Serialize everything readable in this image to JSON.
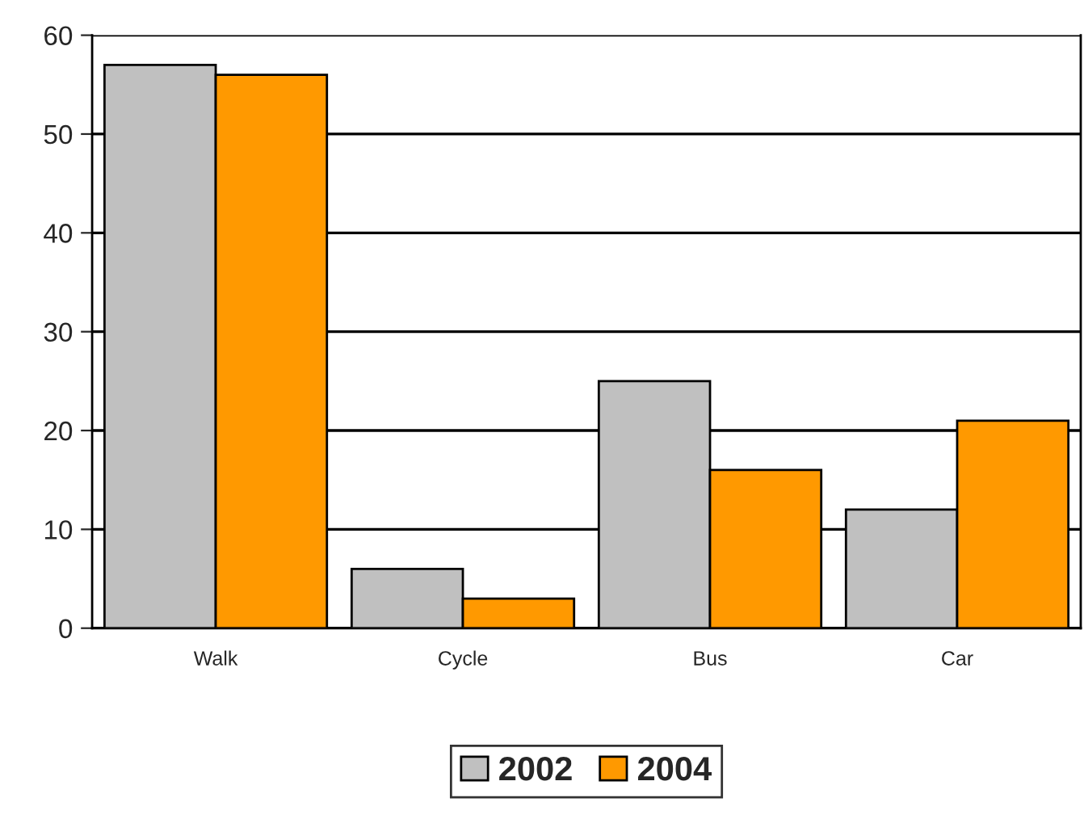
{
  "chart_data": {
    "type": "bar",
    "categories": [
      "Walk",
      "Cycle",
      "Bus",
      "Car"
    ],
    "series": [
      {
        "name": "2002",
        "color": "#c0c0c0",
        "values": [
          57,
          6,
          25,
          12
        ]
      },
      {
        "name": "2004",
        "color": "#ff9900",
        "values": [
          56,
          3,
          16,
          21
        ]
      }
    ],
    "ylim": [
      0,
      60
    ],
    "yticks": [
      0,
      10,
      20,
      30,
      40,
      50,
      60
    ],
    "grid": "y",
    "legend": "bottom"
  }
}
